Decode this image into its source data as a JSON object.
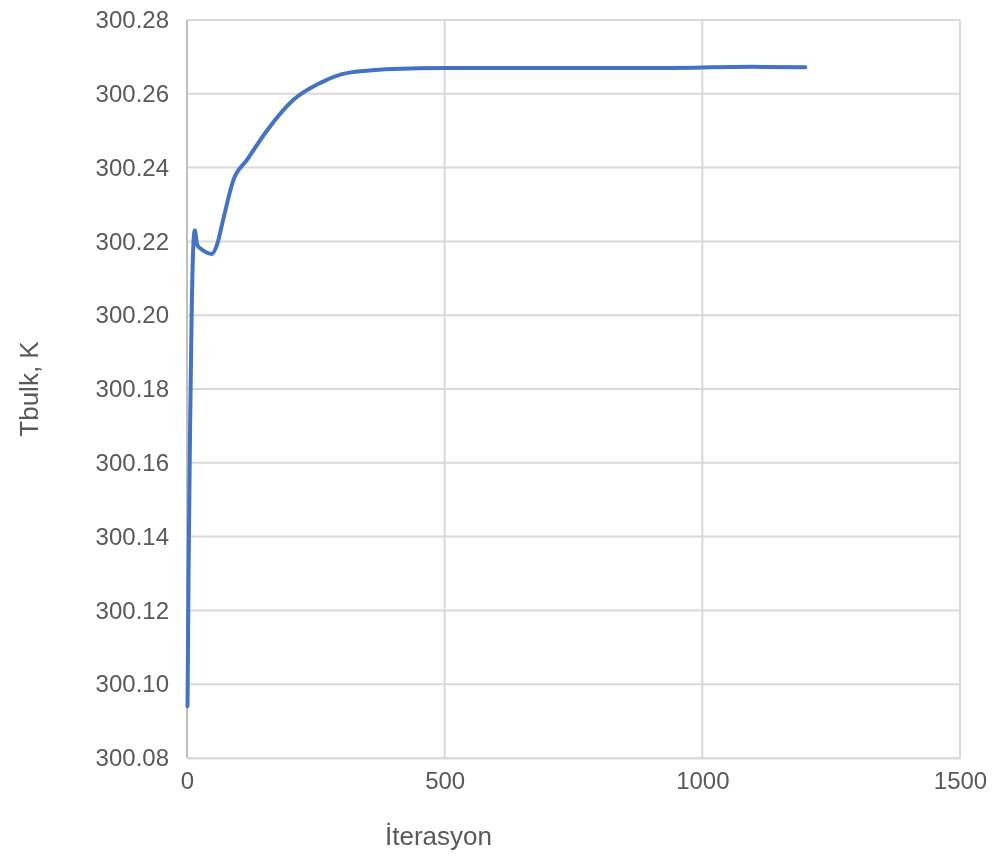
{
  "chart_data": {
    "type": "line",
    "xlabel": "İterasyon",
    "ylabel": "Tbulk, K",
    "xlim": [
      0,
      1500
    ],
    "xticks": [
      0,
      500,
      1000,
      1500
    ],
    "ylim": [
      300.08,
      300.28
    ],
    "yticks": [
      {
        "value": 300.08,
        "label": "300.08"
      },
      {
        "value": 300.1,
        "label": "300.10"
      },
      {
        "value": 300.12,
        "label": "300.12"
      },
      {
        "value": 300.14,
        "label": "300.14"
      },
      {
        "value": 300.16,
        "label": "300.16"
      },
      {
        "value": 300.18,
        "label": "300.18"
      },
      {
        "value": 300.2,
        "label": "300.20"
      },
      {
        "value": 300.22,
        "label": "300.22"
      },
      {
        "value": 300.24,
        "label": "300.24"
      },
      {
        "value": 300.26,
        "label": "300.26"
      },
      {
        "value": 300.28,
        "label": "300.28"
      }
    ],
    "grid": true,
    "marker": "none",
    "line_style": "solid",
    "series": [
      {
        "color": "#4472c4",
        "x": [
          1,
          3,
          6,
          9,
          12,
          15,
          20,
          27,
          38,
          48,
          58,
          70,
          90,
          116,
          155,
          206,
          258,
          310,
          400,
          500,
          700,
          900,
          1100,
          1200
        ],
        "values": [
          300.094,
          300.13,
          300.17,
          300.2,
          300.218,
          300.223,
          300.219,
          300.218,
          300.217,
          300.2166,
          300.219,
          300.2258,
          300.2366,
          300.242,
          300.25,
          300.2583,
          300.2629,
          300.2656,
          300.2667,
          300.267,
          300.267,
          300.267,
          300.2673,
          300.2672
        ]
      }
    ]
  }
}
